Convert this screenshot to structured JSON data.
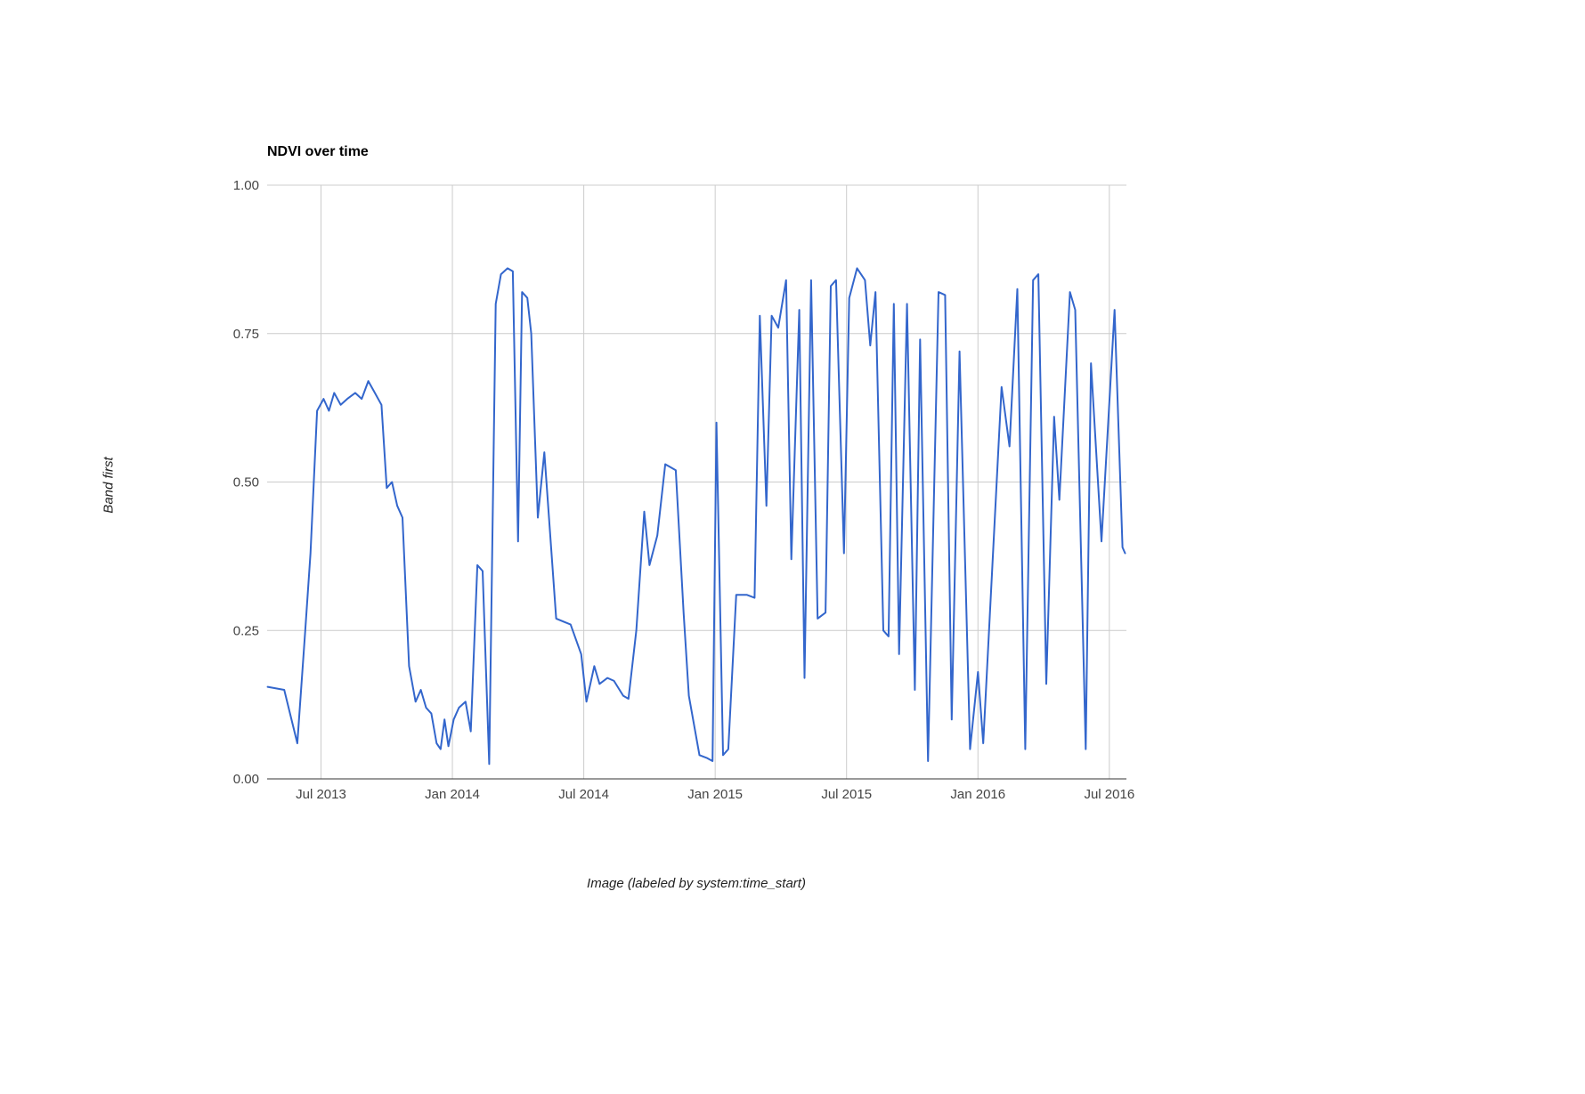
{
  "page": {
    "background": "#ffffff"
  },
  "chart_data": {
    "type": "line",
    "title": "NDVI over time",
    "xlabel": "Image (labeled by system:time_start)",
    "ylabel": "Band first",
    "series_name": "NDVI",
    "series_color": "#3366cc",
    "grid_color": "#cccccc",
    "baseline_color": "#333333",
    "tick_label_color": "#444444",
    "grid": true,
    "legend_position": "none",
    "x_domain": [
      2013.295,
      2016.565
    ],
    "y_domain": [
      0,
      1
    ],
    "x_ticks": [
      {
        "v": 2013.5,
        "label": "Jul 2013"
      },
      {
        "v": 2014.0,
        "label": "Jan 2014"
      },
      {
        "v": 2014.5,
        "label": "Jul 2014"
      },
      {
        "v": 2015.0,
        "label": "Jan 2015"
      },
      {
        "v": 2015.5,
        "label": "Jul 2015"
      },
      {
        "v": 2016.0,
        "label": "Jan 2016"
      },
      {
        "v": 2016.5,
        "label": "Jul 2016"
      }
    ],
    "y_ticks": [
      {
        "v": 0.0,
        "label": "0.00"
      },
      {
        "v": 0.25,
        "label": "0.25"
      },
      {
        "v": 0.5,
        "label": "0.50"
      },
      {
        "v": 0.75,
        "label": "0.75"
      },
      {
        "v": 1.0,
        "label": "1.00"
      }
    ],
    "points": [
      [
        2013.297,
        0.155
      ],
      [
        2013.36,
        0.15
      ],
      [
        2013.41,
        0.06
      ],
      [
        2013.44,
        0.25
      ],
      [
        2013.46,
        0.38
      ],
      [
        2013.485,
        0.62
      ],
      [
        2013.51,
        0.64
      ],
      [
        2013.53,
        0.62
      ],
      [
        2013.55,
        0.65
      ],
      [
        2013.575,
        0.63
      ],
      [
        2013.6,
        0.64
      ],
      [
        2013.63,
        0.65
      ],
      [
        2013.655,
        0.64
      ],
      [
        2013.68,
        0.67
      ],
      [
        2013.705,
        0.65
      ],
      [
        2013.73,
        0.63
      ],
      [
        2013.75,
        0.49
      ],
      [
        2013.77,
        0.5
      ],
      [
        2013.79,
        0.46
      ],
      [
        2013.81,
        0.44
      ],
      [
        2013.835,
        0.19
      ],
      [
        2013.86,
        0.13
      ],
      [
        2013.88,
        0.15
      ],
      [
        2013.9,
        0.12
      ],
      [
        2013.92,
        0.11
      ],
      [
        2013.94,
        0.06
      ],
      [
        2013.955,
        0.05
      ],
      [
        2013.97,
        0.1
      ],
      [
        2013.985,
        0.055
      ],
      [
        2014.005,
        0.1
      ],
      [
        2014.025,
        0.12
      ],
      [
        2014.05,
        0.13
      ],
      [
        2014.07,
        0.08
      ],
      [
        2014.095,
        0.36
      ],
      [
        2014.115,
        0.35
      ],
      [
        2014.14,
        0.025
      ],
      [
        2014.165,
        0.8
      ],
      [
        2014.185,
        0.85
      ],
      [
        2014.21,
        0.86
      ],
      [
        2014.23,
        0.855
      ],
      [
        2014.25,
        0.4
      ],
      [
        2014.265,
        0.82
      ],
      [
        2014.285,
        0.81
      ],
      [
        2014.3,
        0.75
      ],
      [
        2014.325,
        0.44
      ],
      [
        2014.35,
        0.55
      ],
      [
        2014.395,
        0.27
      ],
      [
        2014.45,
        0.26
      ],
      [
        2014.49,
        0.21
      ],
      [
        2014.51,
        0.13
      ],
      [
        2014.54,
        0.19
      ],
      [
        2014.56,
        0.16
      ],
      [
        2014.59,
        0.17
      ],
      [
        2014.615,
        0.165
      ],
      [
        2014.65,
        0.14
      ],
      [
        2014.67,
        0.135
      ],
      [
        2014.7,
        0.25
      ],
      [
        2014.73,
        0.45
      ],
      [
        2014.75,
        0.36
      ],
      [
        2014.78,
        0.41
      ],
      [
        2014.81,
        0.53
      ],
      [
        2014.85,
        0.52
      ],
      [
        2014.88,
        0.28
      ],
      [
        2014.9,
        0.14
      ],
      [
        2014.94,
        0.04
      ],
      [
        2014.97,
        0.035
      ],
      [
        2014.99,
        0.03
      ],
      [
        2015.005,
        0.6
      ],
      [
        2015.03,
        0.04
      ],
      [
        2015.05,
        0.05
      ],
      [
        2015.08,
        0.31
      ],
      [
        2015.12,
        0.31
      ],
      [
        2015.15,
        0.305
      ],
      [
        2015.17,
        0.78
      ],
      [
        2015.195,
        0.46
      ],
      [
        2015.215,
        0.78
      ],
      [
        2015.24,
        0.76
      ],
      [
        2015.27,
        0.84
      ],
      [
        2015.29,
        0.37
      ],
      [
        2015.32,
        0.79
      ],
      [
        2015.34,
        0.17
      ],
      [
        2015.365,
        0.84
      ],
      [
        2015.39,
        0.27
      ],
      [
        2015.42,
        0.28
      ],
      [
        2015.44,
        0.83
      ],
      [
        2015.46,
        0.84
      ],
      [
        2015.49,
        0.38
      ],
      [
        2015.51,
        0.81
      ],
      [
        2015.54,
        0.86
      ],
      [
        2015.57,
        0.84
      ],
      [
        2015.59,
        0.73
      ],
      [
        2015.61,
        0.82
      ],
      [
        2015.64,
        0.25
      ],
      [
        2015.66,
        0.24
      ],
      [
        2015.68,
        0.8
      ],
      [
        2015.7,
        0.21
      ],
      [
        2015.73,
        0.8
      ],
      [
        2015.76,
        0.15
      ],
      [
        2015.78,
        0.74
      ],
      [
        2015.81,
        0.03
      ],
      [
        2015.85,
        0.82
      ],
      [
        2015.875,
        0.815
      ],
      [
        2015.9,
        0.1
      ],
      [
        2015.93,
        0.72
      ],
      [
        2015.97,
        0.05
      ],
      [
        2016.0,
        0.18
      ],
      [
        2016.02,
        0.06
      ],
      [
        2016.09,
        0.66
      ],
      [
        2016.12,
        0.56
      ],
      [
        2016.15,
        0.825
      ],
      [
        2016.18,
        0.05
      ],
      [
        2016.21,
        0.84
      ],
      [
        2016.23,
        0.85
      ],
      [
        2016.26,
        0.16
      ],
      [
        2016.29,
        0.61
      ],
      [
        2016.31,
        0.47
      ],
      [
        2016.35,
        0.82
      ],
      [
        2016.37,
        0.79
      ],
      [
        2016.41,
        0.05
      ],
      [
        2016.43,
        0.7
      ],
      [
        2016.47,
        0.4
      ],
      [
        2016.52,
        0.79
      ],
      [
        2016.55,
        0.39
      ],
      [
        2016.56,
        0.38
      ]
    ]
  }
}
